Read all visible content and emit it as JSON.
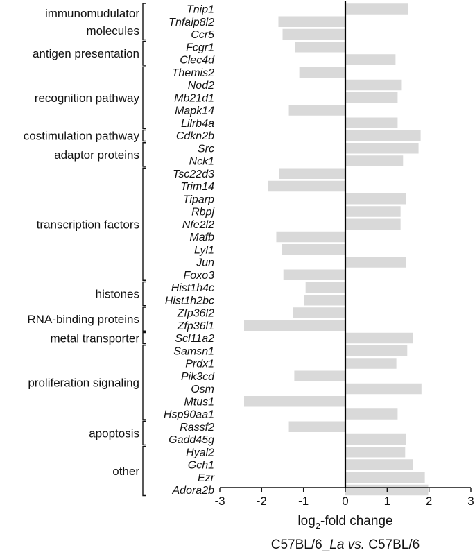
{
  "chart_data": {
    "type": "bar",
    "orientation": "horizontal",
    "xlim": [
      -3,
      3
    ],
    "xticks": [
      "-3",
      "-2",
      "-1",
      "0",
      "1",
      "2",
      "3"
    ],
    "xlabel": {
      "line1_prefix": "log",
      "line1_sub": "2",
      "line1_suffix": "-fold change",
      "line2_a": "C57BL/6_",
      "line2_b": "La",
      "line2_c": " vs.",
      "line2_d": " C57BL/6"
    },
    "bar_color": "#d9d9d9",
    "categories": [
      "Tnip1",
      "Tnfaip8l2",
      "Ccr5",
      "Fcgr1",
      "Clec4d",
      "Themis2",
      "Nod2",
      "Mb21d1",
      "Mapk14",
      "Lilrb4a",
      "Cdkn2b",
      "Src",
      "Nck1",
      "Tsc22d3",
      "Trim14",
      "Tiparp",
      "Rbpj",
      "Nfe2l2",
      "Mafb",
      "Lyl1",
      "Jun",
      "Foxo3",
      "Hist1h4c",
      "Hist1h2bc",
      "Zfp36l2",
      "Zfp36l1",
      "Scl11a2",
      "Samsn1",
      "Prdx1",
      "Pik3cd",
      "Osm",
      "Mtus1",
      "Hsp90aa1",
      "Rassf2",
      "Gadd45g",
      "Hyal2",
      "Gch1",
      "Ezr",
      "Adora2b"
    ],
    "values": [
      1.5,
      -1.6,
      -1.5,
      -1.2,
      1.2,
      -1.1,
      1.35,
      1.25,
      -1.35,
      1.25,
      1.8,
      1.75,
      1.38,
      -1.58,
      -1.85,
      1.45,
      1.32,
      1.32,
      -1.65,
      -1.52,
      1.45,
      -1.48,
      -0.95,
      -0.98,
      -1.25,
      -2.42,
      1.62,
      1.48,
      1.22,
      -1.22,
      1.82,
      -2.42,
      1.25,
      -1.35,
      1.45,
      1.43,
      1.62,
      1.9,
      1.98
    ],
    "groups": [
      {
        "lines": [
          "immunomudulator",
          "molecules"
        ],
        "start": 0,
        "end": 2
      },
      {
        "lines": [
          "antigen presentation"
        ],
        "start": 3,
        "end": 4
      },
      {
        "lines": [
          "recognition pathway"
        ],
        "start": 5,
        "end": 9
      },
      {
        "lines": [
          "costimulation pathway"
        ],
        "start": 10,
        "end": 10
      },
      {
        "lines": [
          "adaptor proteins"
        ],
        "start": 11,
        "end": 12
      },
      {
        "lines": [
          "transcription factors"
        ],
        "start": 13,
        "end": 21
      },
      {
        "lines": [
          "histones"
        ],
        "start": 22,
        "end": 23
      },
      {
        "lines": [
          "RNA-binding proteins"
        ],
        "start": 24,
        "end": 25
      },
      {
        "lines": [
          "metal transporter"
        ],
        "start": 26,
        "end": 26
      },
      {
        "lines": [
          "proliferation signaling"
        ],
        "start": 27,
        "end": 32
      },
      {
        "lines": [
          "apoptosis"
        ],
        "start": 33,
        "end": 34
      },
      {
        "lines": [
          "other"
        ],
        "start": 35,
        "end": 38
      }
    ]
  }
}
